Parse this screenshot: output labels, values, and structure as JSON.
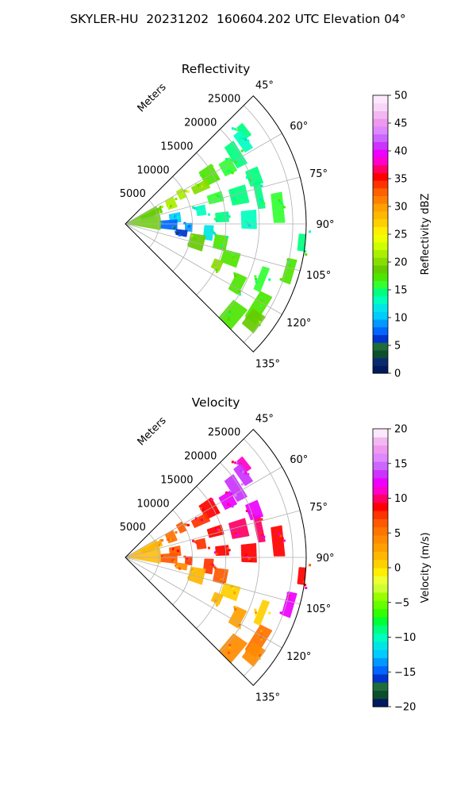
{
  "suptitle": "SKYLER-HU  20231202  160604.202 UTC Elevation 04°",
  "chart_data": [
    {
      "type": "heatmap",
      "title": "Reflectivity",
      "projection": "polar sector",
      "theta_ticks": [
        "45°",
        "60°",
        "75°",
        "90°",
        "105°",
        "120°",
        "135°"
      ],
      "theta_range_deg": [
        45,
        135
      ],
      "r_ticks": [
        "5000",
        "10000",
        "15000",
        "20000",
        "25000"
      ],
      "r_label": "Meters",
      "r_max": 27000,
      "grid": true,
      "colorbar": {
        "label": "Reflectivity dBZ",
        "ticks": [
          "0",
          "5",
          "10",
          "15",
          "20",
          "25",
          "30",
          "35",
          "40",
          "45",
          "50"
        ],
        "range": [
          0,
          50
        ],
        "colors": [
          "#001a5c",
          "#0a2a6e",
          "#0b4e2d",
          "#1f6b3a",
          "#0033cc",
          "#0066ff",
          "#0099ff",
          "#00ccff",
          "#00e6e6",
          "#00ffbf",
          "#00ff80",
          "#33ff33",
          "#4de600",
          "#66cc00",
          "#88dd00",
          "#aaee00",
          "#ccff00",
          "#eeff00",
          "#ffee00",
          "#ffd000",
          "#ffb800",
          "#ffa000",
          "#ff8000",
          "#ff6000",
          "#ff3300",
          "#ff0000",
          "#ff0066",
          "#ff00cc",
          "#ee00ff",
          "#cc33ff",
          "#cc66ff",
          "#dd88ff",
          "#ee99ee",
          "#f2b8f2",
          "#f7d6f7",
          "#fde8fd"
        ]
      },
      "cells": [
        {
          "az": 52,
          "r": 22500,
          "v": 14
        },
        {
          "az": 55,
          "r": 21500,
          "v": 13
        },
        {
          "az": 58,
          "r": 19500,
          "v": 15
        },
        {
          "az": 61,
          "r": 17500,
          "v": 16
        },
        {
          "az": 60,
          "r": 14500,
          "v": 18
        },
        {
          "az": 64,
          "r": 12500,
          "v": 20
        },
        {
          "az": 62,
          "r": 9500,
          "v": 22
        },
        {
          "az": 66,
          "r": 7500,
          "v": 21
        },
        {
          "az": 68,
          "r": 5000,
          "v": 19
        },
        {
          "az": 71,
          "r": 3500,
          "v": 17
        },
        {
          "az": 74,
          "r": 14000,
          "v": 16
        },
        {
          "az": 76,
          "r": 17500,
          "v": 14
        },
        {
          "az": 78,
          "r": 20500,
          "v": 14
        },
        {
          "az": 80,
          "r": 11500,
          "v": 13
        },
        {
          "az": 83,
          "r": 7500,
          "v": 11
        },
        {
          "az": 86,
          "r": 14500,
          "v": 14
        },
        {
          "az": 88,
          "r": 18500,
          "v": 13
        },
        {
          "az": 91,
          "r": 6500,
          "v": 7
        },
        {
          "az": 93,
          "r": 9500,
          "v": 9
        },
        {
          "az": 96,
          "r": 12500,
          "v": 12
        },
        {
          "az": 99,
          "r": 8500,
          "v": 6
        },
        {
          "az": 101,
          "r": 14500,
          "v": 17
        },
        {
          "az": 104,
          "r": 11000,
          "v": 19
        },
        {
          "az": 108,
          "r": 16500,
          "v": 18
        },
        {
          "az": 112,
          "r": 22000,
          "v": 16
        },
        {
          "az": 114,
          "r": 15000,
          "v": 20
        },
        {
          "az": 118,
          "r": 19000,
          "v": 17
        },
        {
          "az": 122,
          "r": 23500,
          "v": 18
        },
        {
          "az": 127,
          "r": 24000,
          "v": 19
        },
        {
          "az": 130,
          "r": 21000,
          "v": 17
        },
        {
          "az": 96,
          "r": 26500,
          "v": 15
        },
        {
          "az": 106,
          "r": 25500,
          "v": 17
        },
        {
          "az": 84,
          "r": 23000,
          "v": 16
        },
        {
          "az": 70,
          "r": 20500,
          "v": 15
        }
      ]
    },
    {
      "type": "heatmap",
      "title": "Velocity",
      "projection": "polar sector",
      "theta_ticks": [
        "45°",
        "60°",
        "75°",
        "90°",
        "105°",
        "120°",
        "135°"
      ],
      "theta_range_deg": [
        45,
        135
      ],
      "r_ticks": [
        "5000",
        "10000",
        "15000",
        "20000",
        "25000"
      ],
      "r_label": "Meters",
      "r_max": 27000,
      "grid": true,
      "colorbar": {
        "label": "Velocity (m/s)",
        "ticks": [
          "−20",
          "−15",
          "−10",
          "−5",
          "0",
          "5",
          "10",
          "15",
          "20"
        ],
        "range": [
          -20,
          20
        ],
        "colors": [
          "#001a5c",
          "#0b4e2d",
          "#1f6b3a",
          "#0033cc",
          "#0066ff",
          "#0099ff",
          "#00ccff",
          "#00e6e6",
          "#00ffbf",
          "#00ff80",
          "#00ff33",
          "#33ff00",
          "#66ff00",
          "#99ff00",
          "#ccff33",
          "#eeff33",
          "#ffee00",
          "#ffd000",
          "#ffb800",
          "#ffa000",
          "#ff8c00",
          "#ff7300",
          "#ff5a00",
          "#ff3300",
          "#ff0000",
          "#ff0066",
          "#ff00cc",
          "#ee00ff",
          "#cc33ff",
          "#cc66ff",
          "#dd88ff",
          "#ee99ee",
          "#f2b8f2",
          "#fde8fd"
        ]
      },
      "cells": [
        {
          "az": 52,
          "r": 22500,
          "v": 11
        },
        {
          "az": 55,
          "r": 21500,
          "v": 13
        },
        {
          "az": 58,
          "r": 19500,
          "v": 14
        },
        {
          "az": 61,
          "r": 17500,
          "v": 12
        },
        {
          "az": 60,
          "r": 14500,
          "v": 9
        },
        {
          "az": 64,
          "r": 12500,
          "v": 8
        },
        {
          "az": 62,
          "r": 9500,
          "v": 7
        },
        {
          "az": 66,
          "r": 7500,
          "v": 5
        },
        {
          "az": 68,
          "r": 5000,
          "v": 3
        },
        {
          "az": 71,
          "r": 3500,
          "v": 2
        },
        {
          "az": 74,
          "r": 14000,
          "v": 9
        },
        {
          "az": 76,
          "r": 17500,
          "v": 10
        },
        {
          "az": 78,
          "r": 20500,
          "v": 10
        },
        {
          "az": 80,
          "r": 11500,
          "v": 8
        },
        {
          "az": 83,
          "r": 7500,
          "v": 7
        },
        {
          "az": 86,
          "r": 14500,
          "v": 9
        },
        {
          "az": 88,
          "r": 18500,
          "v": 9
        },
        {
          "az": 91,
          "r": 6500,
          "v": 6
        },
        {
          "az": 93,
          "r": 9500,
          "v": 8
        },
        {
          "az": 96,
          "r": 12500,
          "v": 8
        },
        {
          "az": 99,
          "r": 8500,
          "v": 4
        },
        {
          "az": 101,
          "r": 14500,
          "v": 6
        },
        {
          "az": 104,
          "r": 11000,
          "v": 2
        },
        {
          "az": 108,
          "r": 16500,
          "v": 1
        },
        {
          "az": 112,
          "r": 22000,
          "v": 1
        },
        {
          "az": 114,
          "r": 15000,
          "v": 2
        },
        {
          "az": 118,
          "r": 19000,
          "v": 3
        },
        {
          "az": 122,
          "r": 23500,
          "v": 5
        },
        {
          "az": 127,
          "r": 24000,
          "v": 4
        },
        {
          "az": 130,
          "r": 21000,
          "v": 4
        },
        {
          "az": 96,
          "r": 26500,
          "v": 9
        },
        {
          "az": 106,
          "r": 25500,
          "v": 12
        },
        {
          "az": 84,
          "r": 23000,
          "v": 9
        },
        {
          "az": 70,
          "r": 20500,
          "v": 12
        }
      ]
    }
  ]
}
